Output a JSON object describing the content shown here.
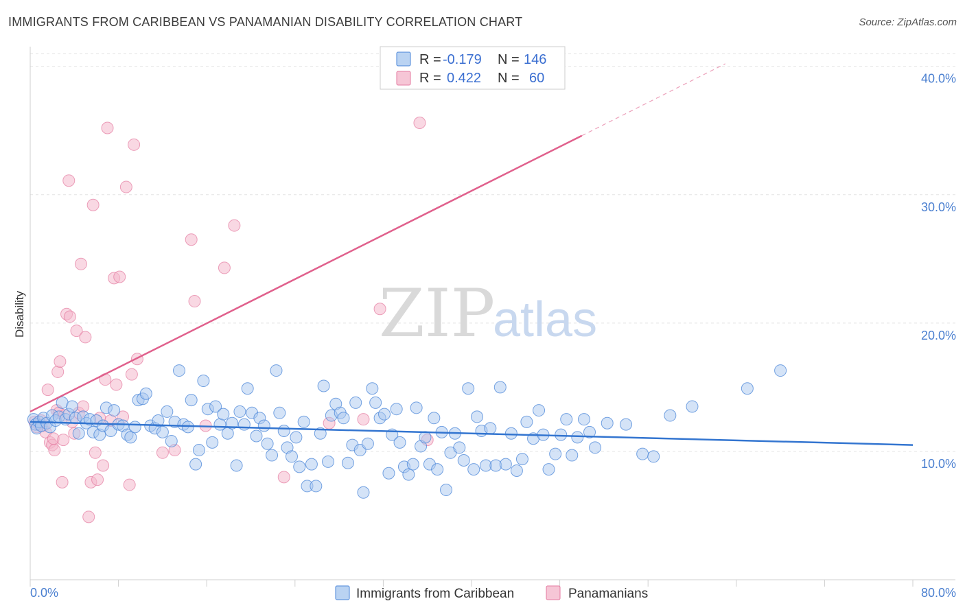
{
  "title": "IMMIGRANTS FROM CARIBBEAN VS PANAMANIAN DISABILITY CORRELATION CHART",
  "source": "Source: ZipAtlas.com",
  "watermark": {
    "zip": "ZIP",
    "atlas": "atlas"
  },
  "colors": {
    "blue": "#4a86d8",
    "blue_fill": "#a9c8ef",
    "pink": "#e47aa0",
    "pink_fill": "#f4b8cc",
    "blue_line": "#3375d0",
    "pink_line": "#e0608c"
  },
  "legend": {
    "rows": [
      {
        "r_label": "R =",
        "r_value": "-0.179",
        "n_label": "N =",
        "n_value": "146"
      },
      {
        "r_label": "R =",
        "r_value": "0.422",
        "n_label": "N =",
        "n_value": "60"
      }
    ]
  },
  "chart_data": {
    "type": "scatter",
    "title": "IMMIGRANTS FROM CARIBBEAN VS PANAMANIAN DISABILITY CORRELATION CHART",
    "xlabel": "",
    "ylabel": "Disability",
    "xlim": [
      0,
      80
    ],
    "ylim": [
      0,
      41
    ],
    "x_tick_labels": [
      "0.0%",
      "80.0%"
    ],
    "y_ticks": [
      10,
      20,
      30,
      40
    ],
    "y_tick_labels": [
      "10.0%",
      "20.0%",
      "30.0%",
      "40.0%"
    ],
    "grid": true,
    "legend_position": "top-center",
    "series": [
      {
        "name": "Immigrants from Caribbean",
        "color": "#4a86d8",
        "trend": {
          "x0": 0,
          "y0": 12.3,
          "x1": 80,
          "y1": 10.5
        },
        "points": [
          [
            0.3,
            12.5
          ],
          [
            0.5,
            12.1
          ],
          [
            0.6,
            11.8
          ],
          [
            0.8,
            12.3
          ],
          [
            1.0,
            12.0
          ],
          [
            1.2,
            12.6
          ],
          [
            1.5,
            12.2
          ],
          [
            1.8,
            11.9
          ],
          [
            2.0,
            12.8
          ],
          [
            2.3,
            12.4
          ],
          [
            2.6,
            12.7
          ],
          [
            2.9,
            13.8
          ],
          [
            3.2,
            12.5
          ],
          [
            3.5,
            12.9
          ],
          [
            3.8,
            13.5
          ],
          [
            4.1,
            12.6
          ],
          [
            4.4,
            11.4
          ],
          [
            4.8,
            12.7
          ],
          [
            5.1,
            12.2
          ],
          [
            5.4,
            12.5
          ],
          [
            5.7,
            11.5
          ],
          [
            6.0,
            12.4
          ],
          [
            6.3,
            11.3
          ],
          [
            6.6,
            12.0
          ],
          [
            6.9,
            13.4
          ],
          [
            7.3,
            11.6
          ],
          [
            7.6,
            13.2
          ],
          [
            8.0,
            12.1
          ],
          [
            8.4,
            12.0
          ],
          [
            8.8,
            11.3
          ],
          [
            9.1,
            11.1
          ],
          [
            9.5,
            11.9
          ],
          [
            9.8,
            14.0
          ],
          [
            10.2,
            14.1
          ],
          [
            10.5,
            14.5
          ],
          [
            10.9,
            12.0
          ],
          [
            11.3,
            11.8
          ],
          [
            11.6,
            12.4
          ],
          [
            12.0,
            11.5
          ],
          [
            12.4,
            13.1
          ],
          [
            12.8,
            10.8
          ],
          [
            13.1,
            12.3
          ],
          [
            13.5,
            16.3
          ],
          [
            13.9,
            12.1
          ],
          [
            14.3,
            11.9
          ],
          [
            14.6,
            14.0
          ],
          [
            15.0,
            9.0
          ],
          [
            15.3,
            10.1
          ],
          [
            15.7,
            15.5
          ],
          [
            16.1,
            13.3
          ],
          [
            16.5,
            10.7
          ],
          [
            16.8,
            13.5
          ],
          [
            17.2,
            12.1
          ],
          [
            17.5,
            12.9
          ],
          [
            17.9,
            11.4
          ],
          [
            18.3,
            12.2
          ],
          [
            18.7,
            8.9
          ],
          [
            19.0,
            13.1
          ],
          [
            19.4,
            12.1
          ],
          [
            19.7,
            14.9
          ],
          [
            20.1,
            13.0
          ],
          [
            20.5,
            11.2
          ],
          [
            20.8,
            12.6
          ],
          [
            21.2,
            12.0
          ],
          [
            21.5,
            10.6
          ],
          [
            21.9,
            9.7
          ],
          [
            22.3,
            16.3
          ],
          [
            22.6,
            13.0
          ],
          [
            23.0,
            11.6
          ],
          [
            23.3,
            10.3
          ],
          [
            23.7,
            9.6
          ],
          [
            24.1,
            11.1
          ],
          [
            24.4,
            8.8
          ],
          [
            24.8,
            12.3
          ],
          [
            25.1,
            7.3
          ],
          [
            25.5,
            9.0
          ],
          [
            25.9,
            7.3
          ],
          [
            26.3,
            11.4
          ],
          [
            26.6,
            15.1
          ],
          [
            27.0,
            9.2
          ],
          [
            27.3,
            12.8
          ],
          [
            27.7,
            13.7
          ],
          [
            28.1,
            13.0
          ],
          [
            28.4,
            12.6
          ],
          [
            28.8,
            9.1
          ],
          [
            29.2,
            10.5
          ],
          [
            29.5,
            13.8
          ],
          [
            29.9,
            10.1
          ],
          [
            30.2,
            6.8
          ],
          [
            30.6,
            10.6
          ],
          [
            31.0,
            14.9
          ],
          [
            31.3,
            13.8
          ],
          [
            31.7,
            12.6
          ],
          [
            32.1,
            12.9
          ],
          [
            32.5,
            8.3
          ],
          [
            32.8,
            11.3
          ],
          [
            33.2,
            13.3
          ],
          [
            33.5,
            10.7
          ],
          [
            33.9,
            8.8
          ],
          [
            34.3,
            8.2
          ],
          [
            34.7,
            9.0
          ],
          [
            35.0,
            13.4
          ],
          [
            35.4,
            10.4
          ],
          [
            35.8,
            11.1
          ],
          [
            36.2,
            9.0
          ],
          [
            36.6,
            12.6
          ],
          [
            36.9,
            8.6
          ],
          [
            37.3,
            11.5
          ],
          [
            37.7,
            7.0
          ],
          [
            38.1,
            9.9
          ],
          [
            38.5,
            11.4
          ],
          [
            38.9,
            10.3
          ],
          [
            39.3,
            9.3
          ],
          [
            39.7,
            14.9
          ],
          [
            40.2,
            8.6
          ],
          [
            40.5,
            12.7
          ],
          [
            40.9,
            11.6
          ],
          [
            41.3,
            8.9
          ],
          [
            41.7,
            11.8
          ],
          [
            42.2,
            8.9
          ],
          [
            42.6,
            15.0
          ],
          [
            43.1,
            9.0
          ],
          [
            43.6,
            11.4
          ],
          [
            44.1,
            8.5
          ],
          [
            44.6,
            9.4
          ],
          [
            45.0,
            12.3
          ],
          [
            45.6,
            11.0
          ],
          [
            46.1,
            13.2
          ],
          [
            46.5,
            11.3
          ],
          [
            47.0,
            8.6
          ],
          [
            47.6,
            9.8
          ],
          [
            48.1,
            11.3
          ],
          [
            48.6,
            12.5
          ],
          [
            49.1,
            9.7
          ],
          [
            49.6,
            11.1
          ],
          [
            50.2,
            12.5
          ],
          [
            50.7,
            11.5
          ],
          [
            51.2,
            10.3
          ],
          [
            52.3,
            12.2
          ],
          [
            54.0,
            12.1
          ],
          [
            55.5,
            9.8
          ],
          [
            56.5,
            9.6
          ],
          [
            58.0,
            12.8
          ],
          [
            60.0,
            13.5
          ],
          [
            65.0,
            14.9
          ],
          [
            68.0,
            16.3
          ]
        ]
      },
      {
        "name": "Panamanians",
        "color": "#e47aa0",
        "trend": {
          "x0": 0,
          "y0": 13.1,
          "x1": 50,
          "y1": 34.6,
          "x2": 63,
          "y2": 40.2
        },
        "points": [
          [
            0.4,
            12.3
          ],
          [
            0.6,
            11.9
          ],
          [
            0.8,
            12.1
          ],
          [
            1.0,
            12.4
          ],
          [
            1.2,
            12.0
          ],
          [
            1.4,
            11.5
          ],
          [
            1.6,
            14.8
          ],
          [
            1.8,
            10.7
          ],
          [
            2.0,
            10.5
          ],
          [
            2.1,
            11.0
          ],
          [
            2.2,
            10.1
          ],
          [
            2.4,
            13.2
          ],
          [
            2.5,
            16.2
          ],
          [
            2.6,
            13.0
          ],
          [
            2.7,
            17.0
          ],
          [
            2.9,
            7.6
          ],
          [
            3.0,
            10.9
          ],
          [
            3.1,
            12.8
          ],
          [
            3.3,
            20.7
          ],
          [
            3.5,
            31.1
          ],
          [
            3.6,
            20.5
          ],
          [
            3.8,
            12.3
          ],
          [
            4.0,
            11.4
          ],
          [
            4.2,
            19.4
          ],
          [
            4.4,
            13.0
          ],
          [
            4.6,
            24.6
          ],
          [
            4.8,
            13.5
          ],
          [
            5.0,
            18.9
          ],
          [
            5.3,
            4.9
          ],
          [
            5.5,
            7.6
          ],
          [
            5.7,
            29.2
          ],
          [
            5.9,
            9.9
          ],
          [
            6.1,
            7.8
          ],
          [
            6.3,
            12.6
          ],
          [
            6.6,
            8.9
          ],
          [
            6.8,
            15.6
          ],
          [
            7.0,
            35.2
          ],
          [
            7.3,
            12.4
          ],
          [
            7.6,
            23.5
          ],
          [
            7.8,
            15.2
          ],
          [
            8.1,
            23.6
          ],
          [
            8.4,
            12.7
          ],
          [
            8.7,
            30.6
          ],
          [
            9.0,
            7.4
          ],
          [
            9.2,
            16.0
          ],
          [
            9.4,
            33.9
          ],
          [
            9.7,
            17.2
          ],
          [
            12.0,
            9.9
          ],
          [
            13.1,
            10.1
          ],
          [
            14.6,
            26.5
          ],
          [
            14.9,
            21.7
          ],
          [
            15.9,
            12.0
          ],
          [
            17.6,
            24.3
          ],
          [
            18.5,
            27.6
          ],
          [
            23.0,
            8.0
          ],
          [
            27.1,
            12.2
          ],
          [
            30.2,
            12.5
          ],
          [
            31.7,
            21.1
          ],
          [
            35.3,
            35.6
          ],
          [
            36.0,
            10.9
          ]
        ]
      }
    ]
  },
  "bottom_legend": {
    "items": [
      "Immigrants from Caribbean",
      "Panamanians"
    ]
  }
}
